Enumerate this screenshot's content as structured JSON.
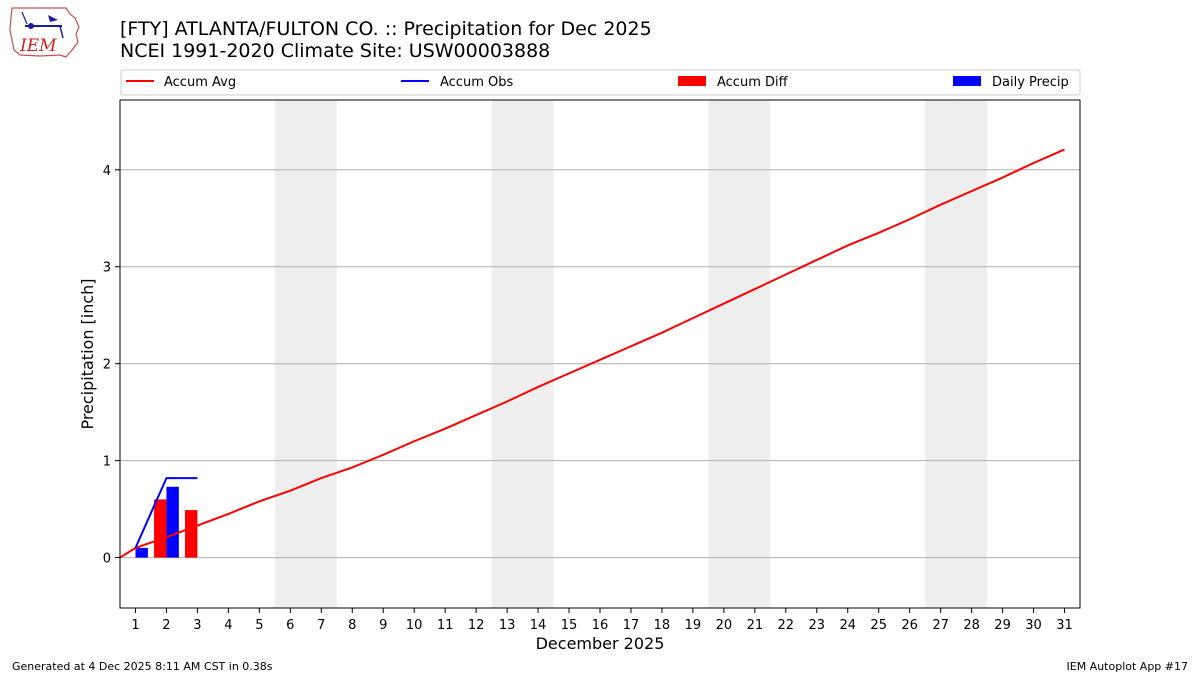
{
  "logo": {
    "text": "IEM"
  },
  "chart_data": {
    "type": "line",
    "title": "[FTY] ATLANTA/FULTON CO. :: Precipitation for Dec 2025",
    "subtitle": "NCEI 1991-2020 Climate Site: USW00003888",
    "xlabel": "December 2025",
    "ylabel": "Precipitation [inch]",
    "xlim": [
      0.5,
      31.5
    ],
    "ylim": [
      -0.52,
      4.72
    ],
    "x_ticks": [
      1,
      2,
      3,
      4,
      5,
      6,
      7,
      8,
      9,
      10,
      11,
      12,
      13,
      14,
      15,
      16,
      17,
      18,
      19,
      20,
      21,
      22,
      23,
      24,
      25,
      26,
      27,
      28,
      29,
      30,
      31
    ],
    "y_ticks": [
      0,
      1,
      2,
      3,
      4
    ],
    "grid": "horizontal",
    "legend_placement": "top",
    "weekend_bands": [
      [
        6,
        7
      ],
      [
        13,
        14
      ],
      [
        20,
        21
      ],
      [
        27,
        28
      ]
    ],
    "legend": [
      {
        "label": "Accum Avg",
        "kind": "line",
        "color": "#ff0000"
      },
      {
        "label": "Accum Obs",
        "kind": "line",
        "color": "#0000ff"
      },
      {
        "label": "Accum Diff",
        "kind": "bar",
        "color": "#ff0000"
      },
      {
        "label": "Daily Precip",
        "kind": "bar",
        "color": "#0000ff"
      }
    ],
    "series": [
      {
        "name": "Accum Avg",
        "type": "line",
        "color": "#ff0000",
        "x": [
          0.5,
          1,
          2,
          3,
          4,
          5,
          6,
          7,
          8,
          9,
          10,
          11,
          12,
          13,
          14,
          15,
          16,
          17,
          18,
          19,
          20,
          21,
          22,
          23,
          24,
          25,
          26,
          27,
          28,
          29,
          30,
          31
        ],
        "values": [
          0,
          0.1,
          0.21,
          0.33,
          0.45,
          0.58,
          0.69,
          0.82,
          0.93,
          1.06,
          1.2,
          1.33,
          1.47,
          1.61,
          1.76,
          1.9,
          2.04,
          2.18,
          2.32,
          2.47,
          2.62,
          2.77,
          2.92,
          3.07,
          3.22,
          3.35,
          3.49,
          3.64,
          3.78,
          3.92,
          4.07,
          4.21
        ]
      },
      {
        "name": "Accum Obs",
        "type": "line",
        "color": "#0000ff",
        "x": [
          1,
          2,
          3
        ],
        "values": [
          0.1,
          0.82,
          0.82
        ]
      },
      {
        "name": "Accum Diff",
        "type": "bar",
        "color": "#ff0000",
        "x": [
          1,
          2,
          3
        ],
        "values": [
          0.0,
          0.6,
          0.49
        ]
      },
      {
        "name": "Daily Precip",
        "type": "bar",
        "color": "#0000ff",
        "x": [
          1,
          2,
          3
        ],
        "values": [
          0.1,
          0.73,
          0.0
        ]
      }
    ]
  },
  "footer": {
    "left": "Generated at 4 Dec 2025 8:11 AM CST in 0.38s",
    "right": "IEM Autoplot App #17"
  }
}
